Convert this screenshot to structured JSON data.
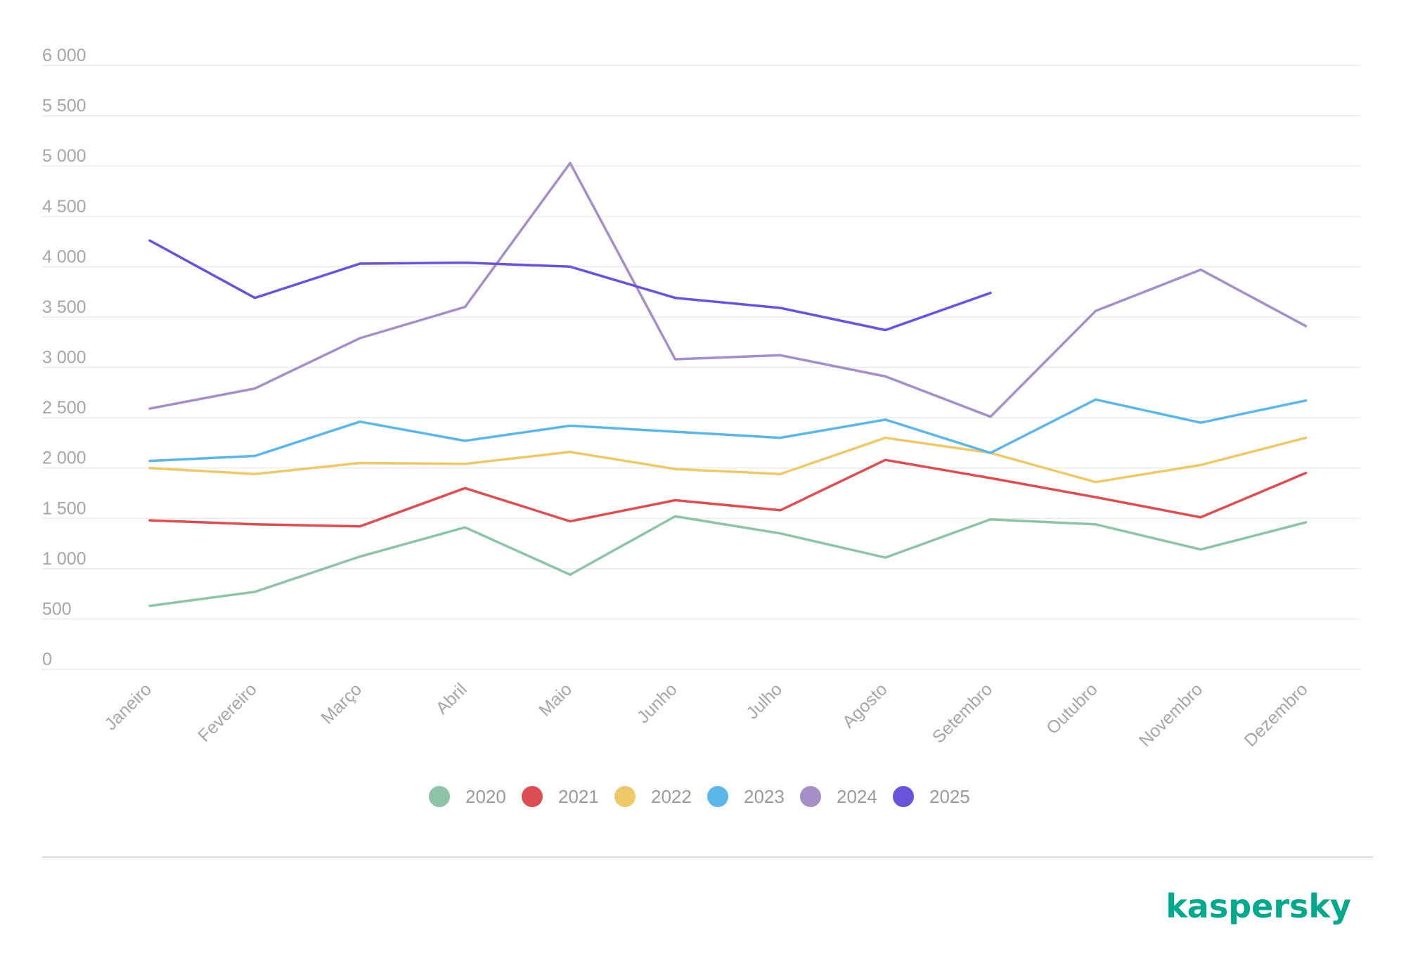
{
  "chart_data": {
    "type": "line",
    "title": "",
    "xlabel": "",
    "ylabel": "",
    "ylim": [
      0,
      6000
    ],
    "yticks": [
      0,
      500,
      1000,
      1500,
      2000,
      2500,
      3000,
      3500,
      4000,
      4500,
      5000,
      5500,
      6000
    ],
    "ytick_labels": [
      "0",
      "500",
      "1 000",
      "1 500",
      "2 000",
      "2 500",
      "3 000",
      "3 500",
      "4 000",
      "4 500",
      "5 000",
      "5 500",
      "6 000"
    ],
    "categories": [
      "Janeiro",
      "Fevereiro",
      "Março",
      "Abril",
      "Maio",
      "Junho",
      "Julho",
      "Agosto",
      "Setembro",
      "Outubro",
      "Novembro",
      "Dezembro"
    ],
    "grid": true,
    "legend_position": "bottom-center",
    "series": [
      {
        "name": "2020",
        "color": "#8dc4a7",
        "values": [
          630,
          770,
          1120,
          1410,
          940,
          1520,
          1350,
          1110,
          1490,
          1440,
          1190,
          1460
        ]
      },
      {
        "name": "2021",
        "color": "#dc4e52",
        "values": [
          1480,
          1440,
          1420,
          1800,
          1470,
          1680,
          1580,
          2080,
          1900,
          1710,
          1510,
          1950
        ]
      },
      {
        "name": "2022",
        "color": "#eec96a",
        "values": [
          2000,
          1940,
          2050,
          2040,
          2160,
          1990,
          1940,
          2300,
          2150,
          1860,
          2030,
          2300
        ]
      },
      {
        "name": "2023",
        "color": "#5bb7e8",
        "values": [
          2070,
          2120,
          2460,
          2270,
          2420,
          2360,
          2300,
          2480,
          2150,
          2680,
          2450,
          2670
        ]
      },
      {
        "name": "2024",
        "color": "#a68ec9",
        "values": [
          2590,
          2790,
          3290,
          3600,
          5030,
          3080,
          3120,
          2910,
          2510,
          3560,
          3970,
          3410
        ]
      },
      {
        "name": "2025",
        "color": "#6b52da",
        "values": [
          4260,
          3690,
          4030,
          4040,
          4000,
          3690,
          3590,
          3370,
          3740,
          null,
          null,
          null
        ]
      }
    ]
  },
  "brand": {
    "name": "kaspersky"
  }
}
